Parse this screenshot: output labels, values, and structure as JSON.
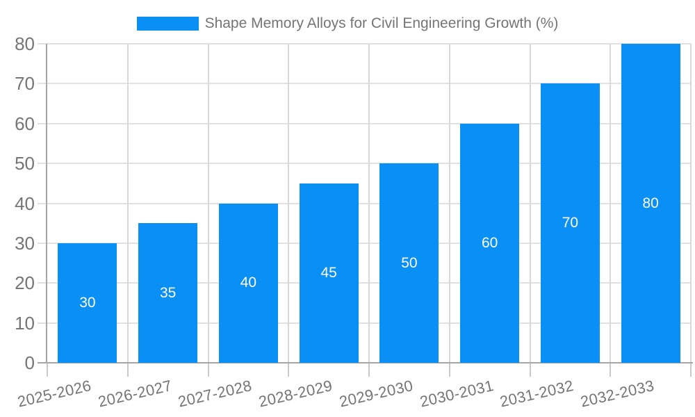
{
  "chart_data": {
    "type": "bar",
    "title": "Shape Memory Alloys for Civil Engineering Growth (%)",
    "categories": [
      "2025-2026",
      "2026-2027",
      "2027-2028",
      "2028-2029",
      "2029-2030",
      "2030-2031",
      "2031-2032",
      "2032-2033"
    ],
    "values": [
      30,
      35,
      40,
      45,
      50,
      60,
      70,
      80
    ],
    "series": [
      {
        "name": "Shape Memory Alloys for Civil Engineering Growth (%)",
        "values": [
          30,
          35,
          40,
          45,
          50,
          60,
          70,
          80
        ]
      }
    ],
    "xlabel": "",
    "ylabel": "",
    "ylim": [
      0,
      80
    ],
    "yticks": [
      0,
      10,
      20,
      30,
      40,
      50,
      60,
      70,
      80
    ],
    "grid": true,
    "legend_position": "top",
    "bar_color": "#0a90f4",
    "data_label_color": "#ffffff",
    "axis_text_color": "#757575",
    "grid_color_horizontal": "#e1e1e1",
    "grid_color_vertical": "#d8d8d8",
    "axis_line_color": "#a6a6a6",
    "tick_color": "#c9c9c9"
  }
}
